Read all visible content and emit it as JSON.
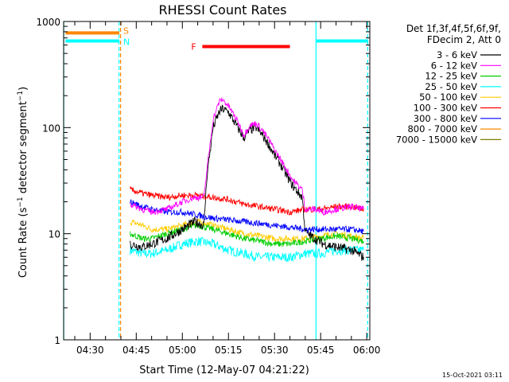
{
  "chart_data": {
    "type": "line",
    "title": "RHESSI Count Rates",
    "xlabel": "Start Time (12-May-07 04:21:22)",
    "ylabel": "Count Rate (s^-1 detector segment^-1)",
    "ylabel_main": "Count Rate (s",
    "ylabel_exp1": "−1",
    "ylabel_mid": " detector segment",
    "ylabel_exp2": "−1",
    "ylabel_end": ")",
    "y_scale": "log",
    "ylim": [
      1,
      1000
    ],
    "xlim_minutes_since_0400": [
      21.37,
      121.0
    ],
    "x_ticks": [
      {
        "label": "04:30",
        "m": 30
      },
      {
        "label": "04:45",
        "m": 45
      },
      {
        "label": "05:00",
        "m": 60
      },
      {
        "label": "05:15",
        "m": 75
      },
      {
        "label": "05:30",
        "m": 90
      },
      {
        "label": "05:45",
        "m": 105
      },
      {
        "label": "06:00",
        "m": 120
      }
    ],
    "y_ticks": [
      {
        "label": "1",
        "v": 1
      },
      {
        "label": "10",
        "v": 10
      },
      {
        "label": "100",
        "v": 100
      },
      {
        "label": "1000",
        "v": 1000
      }
    ],
    "legend_header": [
      "Det 1f,3f,4f,5f,6f,9f,",
      "FDecim 2, Att 0"
    ],
    "legend_placement": "right",
    "series": [
      {
        "name": "3 - 6 keV",
        "color": "#000000",
        "x": [
          43,
          47,
          50,
          55,
          60,
          64,
          67,
          68,
          70,
          72,
          73,
          75,
          78,
          80,
          82,
          84,
          86,
          88,
          90,
          92,
          94,
          96,
          99,
          100,
          103,
          106,
          110,
          115,
          119
        ],
        "y": [
          8,
          7.5,
          8,
          9,
          11,
          13,
          12,
          35,
          100,
          140,
          150,
          140,
          100,
          80,
          95,
          100,
          85,
          70,
          55,
          45,
          35,
          28,
          22,
          10.5,
          9,
          8,
          7.5,
          7,
          6
        ]
      },
      {
        "name": "6 - 12 keV",
        "color": "#ff00ff",
        "x": [
          43,
          47,
          50,
          55,
          60,
          64,
          67,
          68,
          70,
          72,
          73,
          75,
          78,
          80,
          82,
          84,
          86,
          88,
          90,
          92,
          94,
          96,
          99,
          100,
          103,
          106,
          110,
          115,
          119
        ],
        "y": [
          19,
          17,
          16,
          17,
          20,
          22,
          22,
          40,
          120,
          175,
          185,
          160,
          115,
          85,
          105,
          110,
          95,
          78,
          62,
          50,
          40,
          32,
          26,
          17,
          17,
          16,
          17,
          18,
          17
        ]
      },
      {
        "name": "12 - 25 keV",
        "color": "#00cc00",
        "x": [
          43,
          47,
          50,
          55,
          60,
          65,
          70,
          75,
          80,
          85,
          90,
          95,
          100,
          105,
          110,
          115,
          119
        ],
        "y": [
          10,
          9,
          9,
          10,
          11,
          12,
          11,
          10,
          9,
          8.5,
          8,
          8,
          8.5,
          9,
          9.5,
          9,
          8.5
        ]
      },
      {
        "name": "25 - 50 keV",
        "color": "#00ffff",
        "x": [
          43,
          47,
          50,
          55,
          60,
          65,
          70,
          75,
          80,
          85,
          90,
          95,
          100,
          105,
          110,
          115,
          119
        ],
        "y": [
          7,
          6.5,
          6.5,
          7,
          8,
          8.5,
          8,
          7,
          6.5,
          6,
          6,
          6,
          6.5,
          6.5,
          7,
          7,
          7
        ]
      },
      {
        "name": "50 - 100 keV",
        "color": "#ffcc00",
        "x": [
          43,
          47,
          50,
          55,
          60,
          65,
          70,
          75,
          80,
          85,
          90,
          95,
          100,
          105,
          110,
          115,
          119
        ],
        "y": [
          13,
          12,
          11,
          11,
          12,
          13,
          12,
          11,
          10,
          9.5,
          9,
          9,
          9,
          9.5,
          10,
          9.5,
          9
        ]
      },
      {
        "name": "100 - 300 keV",
        "color": "#ff0000",
        "x": [
          43,
          47,
          50,
          55,
          60,
          65,
          70,
          75,
          80,
          85,
          90,
          95,
          100,
          105,
          110,
          115,
          119
        ],
        "y": [
          26,
          24,
          23,
          22,
          23,
          23,
          22,
          21,
          19,
          18,
          17,
          16,
          17,
          17,
          18,
          18,
          17
        ]
      },
      {
        "name": "300 - 800 keV",
        "color": "#0000ff",
        "x": [
          43,
          47,
          50,
          55,
          60,
          65,
          70,
          75,
          80,
          85,
          90,
          95,
          100,
          105,
          110,
          115,
          119
        ],
        "y": [
          20,
          18,
          17,
          16,
          16,
          15,
          14,
          13.5,
          13,
          12.5,
          12,
          11.5,
          11,
          11,
          11,
          11,
          10.5
        ]
      },
      {
        "name": "800 - 7000 keV",
        "color": "#ff8800",
        "x": [
          43,
          47,
          50,
          55,
          60,
          65,
          70,
          75,
          80,
          85,
          90,
          95,
          100,
          105,
          110,
          115,
          119
        ],
        "y": [
          11,
          10,
          10,
          10.5,
          11,
          11.5,
          11,
          10,
          9,
          8.5,
          8,
          8,
          8,
          8.5,
          9,
          8.5,
          8
        ]
      },
      {
        "name": "7000 - 15000 keV",
        "color": "#808000",
        "x": [],
        "y": []
      }
    ],
    "annotations": [
      {
        "label": "S",
        "color": "#ff8800",
        "type": "attenuator-bar",
        "x_start": 22,
        "x_end": 39.5,
        "y": 780
      },
      {
        "label": "N",
        "color": "#00ffff",
        "type": "night-bar",
        "x_start": 22,
        "x_end": 39.5,
        "y2": 655
      },
      {
        "label": "F",
        "color": "#ff0000",
        "type": "flare-bar",
        "x_start": 66.5,
        "x_end": 95,
        "y": 580
      }
    ],
    "night_bar_right": {
      "x_start": 103.5,
      "x_end": 120.5,
      "y": 655
    },
    "vlines": [
      {
        "m": 21.4,
        "color": "#00ffff",
        "style": "solid"
      },
      {
        "m": 39.4,
        "color": "#00ffff",
        "style": "dashed"
      },
      {
        "m": 39.9,
        "color": "#ff8800",
        "style": "dashed"
      },
      {
        "m": 103.5,
        "color": "#00ffff",
        "style": "solid"
      },
      {
        "m": 120.3,
        "color": "#00ffff",
        "style": "dashed"
      }
    ]
  },
  "footer_date": "15-Oct-2021 03:11"
}
